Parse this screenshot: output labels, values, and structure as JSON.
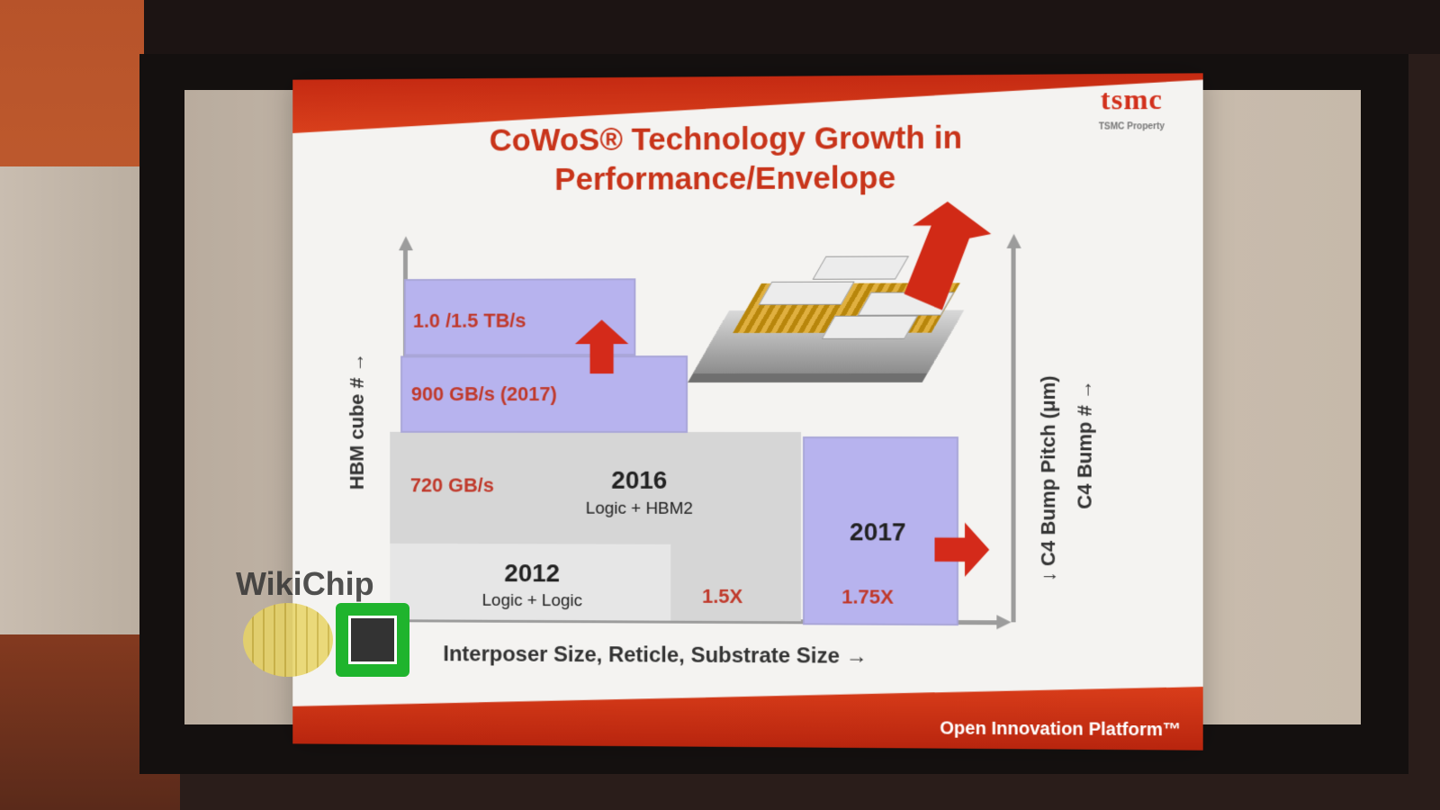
{
  "slide": {
    "title_line1": "CoWoS® Technology Growth in",
    "title_line2": "Performance/Envelope",
    "logo": "tsmc",
    "logo_sub": "TSMC Property",
    "footer": "Open Innovation Platform™"
  },
  "axes": {
    "y_left": "HBM cube # →",
    "y_right_1": "↓ C4 Bump Pitch (μm)",
    "y_right_2": "C4 Bump # →",
    "x": "Interposer Size, Reticle, Substrate Size →"
  },
  "blocks": {
    "bw_top": "1.0 /1.5 TB/s",
    "bw_2017": "900 GB/s (2017)",
    "bw_2016": "720 GB/s",
    "year_2016": "2016",
    "desc_2016": "Logic + HBM2",
    "year_2012": "2012",
    "desc_2012": "Logic + Logic",
    "mult_15": "1.5X",
    "year_2017": "2017",
    "mult_175": "1.75X"
  },
  "watermark": {
    "text": "WikiChip"
  }
}
